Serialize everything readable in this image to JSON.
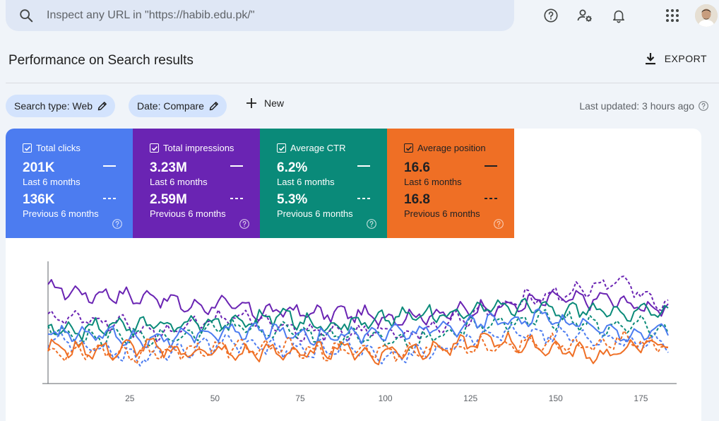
{
  "search": {
    "placeholder": "Inspect any URL in \"https://habib.edu.pk/\""
  },
  "top_icons": [
    "help-icon",
    "admin-icon",
    "bell-icon",
    "apps-icon"
  ],
  "header": {
    "title": "Performance on Search results",
    "export_label": "EXPORT"
  },
  "filters": {
    "search_type": "Search type: Web",
    "date": "Date: Compare",
    "new_label": "New",
    "last_updated": "Last updated: 3 hours ago"
  },
  "metrics": [
    {
      "label": "Total clicks",
      "current": "201K",
      "current_label": "Last 6 months",
      "previous": "136K",
      "previous_label": "Previous 6 months",
      "color": "#4c7cf0"
    },
    {
      "label": "Total impressions",
      "current": "3.23M",
      "current_label": "Last 6 months",
      "previous": "2.59M",
      "previous_label": "Previous 6 months",
      "color": "#6a24b3"
    },
    {
      "label": "Average CTR",
      "current": "6.2%",
      "current_label": "Last 6 months",
      "previous": "5.3%",
      "previous_label": "Previous 6 months",
      "color": "#0a8a79"
    },
    {
      "label": "Average position",
      "current": "16.6",
      "current_label": "Last 6 months",
      "previous": "16.8",
      "previous_label": "Previous 6 months",
      "color": "#ef6f25"
    }
  ],
  "chart_data": {
    "type": "line",
    "x_ticks": [
      25,
      50,
      75,
      100,
      125,
      150,
      175
    ],
    "xlim": [
      1,
      183
    ],
    "ylim": [
      0,
      100
    ],
    "grid": false,
    "series_meta": [
      {
        "name": "Total impressions (last 6 months)",
        "color": "#6a24b3",
        "style": "solid",
        "base": [
          78,
          76,
          72,
          74,
          70,
          72,
          66,
          62,
          66,
          62,
          58,
          60,
          58,
          57,
          58,
          55,
          54,
          55,
          56,
          58,
          62,
          62,
          64,
          68,
          70,
          68,
          70,
          66,
          62,
          62
        ]
      },
      {
        "name": "Total impressions (previous 6 months)",
        "color": "#6a24b3",
        "style": "dashed",
        "base": [
          56,
          52,
          52,
          50,
          46,
          42,
          42,
          50,
          52,
          56,
          52,
          48,
          42,
          42,
          42,
          42,
          44,
          40,
          46,
          50,
          58,
          60,
          68,
          72,
          74,
          76,
          82,
          84,
          70,
          62
        ]
      },
      {
        "name": "Average CTR (last 6 months)",
        "color": "#0a8a79",
        "style": "solid",
        "base": [
          44,
          42,
          46,
          48,
          46,
          48,
          48,
          50,
          50,
          50,
          54,
          56,
          50,
          48,
          50,
          50,
          54,
          56,
          56,
          58,
          60,
          64,
          62,
          62,
          58,
          62,
          58,
          58,
          60,
          56
        ]
      },
      {
        "name": "Average CTR (previous 6 months)",
        "color": "#0a8a79",
        "style": "dashed",
        "base": [
          46,
          40,
          36,
          38,
          40,
          36,
          36,
          42,
          46,
          46,
          44,
          44,
          42,
          40,
          40,
          38,
          36,
          34,
          38,
          42,
          48,
          50,
          50,
          54,
          52,
          50,
          46,
          46,
          48,
          40
        ]
      },
      {
        "name": "Total clicks (last 6 months)",
        "color": "#4c7cf0",
        "style": "solid",
        "base": [
          42,
          40,
          42,
          40,
          36,
          38,
          36,
          40,
          42,
          42,
          44,
          42,
          40,
          40,
          40,
          40,
          42,
          42,
          44,
          46,
          50,
          52,
          52,
          56,
          50,
          50,
          44,
          40,
          42,
          44
        ]
      },
      {
        "name": "Total clicks (previous 6 months)",
        "color": "#4c7cf0",
        "style": "dashed",
        "base": [
          38,
          34,
          30,
          26,
          22,
          24,
          26,
          30,
          32,
          32,
          30,
          28,
          26,
          28,
          28,
          26,
          24,
          24,
          26,
          30,
          38,
          40,
          42,
          40,
          40,
          38,
          36,
          34,
          34,
          32
        ]
      },
      {
        "name": "Average position (last 6 months)",
        "color": "#ef6f25",
        "style": "solid",
        "base": [
          30,
          28,
          28,
          26,
          30,
          30,
          26,
          26,
          26,
          24,
          26,
          26,
          24,
          28,
          30,
          22,
          26,
          28,
          28,
          30,
          34,
          36,
          32,
          30,
          28,
          26,
          22,
          28,
          32,
          34
        ]
      },
      {
        "name": "Average position (previous 6 months)",
        "color": "#ef6f25",
        "style": "dashed",
        "base": [
          24,
          26,
          28,
          26,
          24,
          26,
          28,
          28,
          28,
          30,
          28,
          30,
          28,
          26,
          26,
          28,
          26,
          26,
          28,
          28,
          30,
          32,
          32,
          34,
          32,
          30,
          34,
          36,
          32,
          30
        ]
      }
    ]
  }
}
